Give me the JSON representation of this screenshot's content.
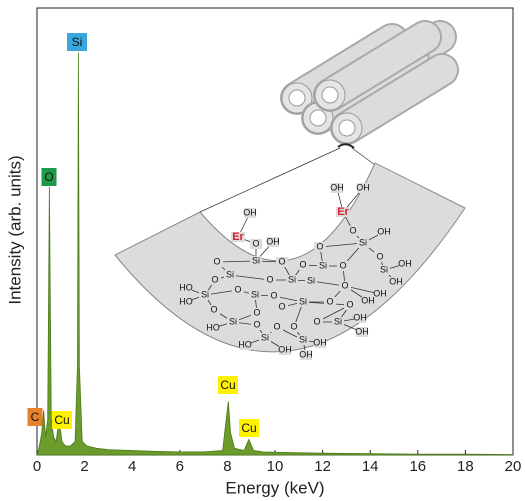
{
  "chart_data": {
    "type": "area",
    "x_label": "Energy (keV)",
    "y_label": "Intensity (arb. units)",
    "x": [
      0,
      0.1,
      0.2,
      0.28,
      0.36,
      0.45,
      0.52,
      0.6,
      0.7,
      0.8,
      0.93,
      1.05,
      1.2,
      1.4,
      1.6,
      1.7,
      1.74,
      1.78,
      1.9,
      2.1,
      2.5,
      3,
      4,
      5,
      6,
      7,
      7.8,
      7.95,
      8.04,
      8.13,
      8.3,
      8.7,
      8.9,
      9.1,
      9.5,
      10,
      12,
      14,
      16,
      18,
      20
    ],
    "values": [
      0,
      2,
      5,
      10,
      4,
      8,
      60,
      8,
      4,
      3,
      8,
      3,
      2,
      2,
      3,
      20,
      90,
      20,
      3,
      2,
      1.5,
      1.2,
      1,
      0.8,
      0.7,
      0.7,
      1,
      8,
      12,
      5,
      1.5,
      1,
      3.5,
      1,
      0.7,
      0.6,
      0.4,
      0.3,
      0.2,
      0.2,
      0.1
    ],
    "color": "#6b9b2b",
    "xlim": [
      0,
      20
    ],
    "xticks": [
      0,
      2,
      4,
      6,
      8,
      10,
      12,
      14,
      16,
      18,
      20
    ],
    "ylim": [
      0,
      100
    ],
    "annotations": [
      {
        "text": "Si",
        "color": "#38a7de"
      },
      {
        "text": "O",
        "color": "#1e9b4a"
      },
      {
        "text": "C",
        "color": "#e5822a"
      },
      {
        "text": "Cu",
        "color": "#fff200"
      },
      {
        "text": "Cu",
        "color": "#fff200"
      },
      {
        "text": "Cu",
        "color": "#fff200"
      }
    ],
    "inset_labels": [
      "Er",
      "OH",
      "O",
      "OH",
      "Si",
      "Er",
      "OH",
      "OH",
      "O",
      "Si",
      "OH",
      "O",
      "Si",
      "O",
      "O",
      "Si",
      "OH",
      "OH",
      "O",
      "Si",
      "O",
      "O",
      "Si",
      "O",
      "O",
      "Si",
      "O",
      "OH",
      "OH",
      "Si",
      "HO",
      "HO",
      "O",
      "Si",
      "O",
      "Si",
      "O",
      "O",
      "O",
      "O",
      "O",
      "Si",
      "HO",
      "O",
      "O",
      "Si",
      "OH",
      "OH",
      "O",
      "Si",
      "HO",
      "OH",
      "O",
      "Si",
      "OH",
      "OH"
    ]
  }
}
